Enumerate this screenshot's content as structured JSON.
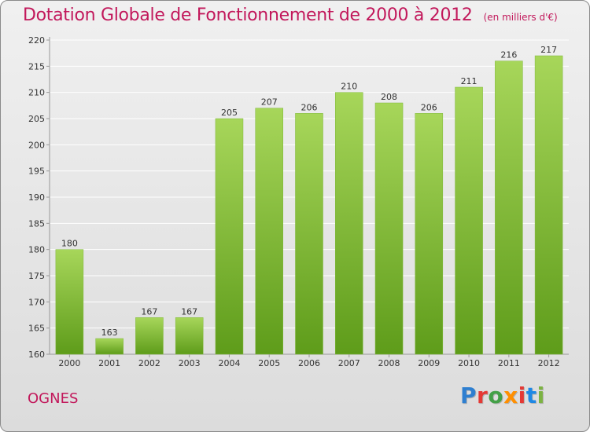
{
  "header": {
    "title": "Dotation Globale de Fonctionnement de 2000 à 2012",
    "unit": "(en milliers d'€)"
  },
  "commune": "OGNES",
  "logo": {
    "letters": [
      "P",
      "r",
      "o",
      "x",
      "i",
      "t",
      "i"
    ],
    "colors": [
      "#2e7fd0",
      "#e53935",
      "#43a047",
      "#ff8f00",
      "#e53935",
      "#1e88e5",
      "#7cb342"
    ]
  },
  "colors": {
    "bar_top": "#a7d65a",
    "bar_bottom": "#5e9c1a",
    "grid": "#ffffff",
    "axis": "#999999",
    "title": "#c2185b"
  },
  "chart_data": {
    "type": "bar",
    "title": "Dotation Globale de Fonctionnement de 2000 à 2012",
    "subtitle": "(en milliers d'€)",
    "xlabel": "",
    "ylabel": "",
    "categories": [
      "2000",
      "2001",
      "2002",
      "2003",
      "2004",
      "2005",
      "2006",
      "2007",
      "2008",
      "2009",
      "2010",
      "2011",
      "2012"
    ],
    "values": [
      180,
      163,
      167,
      167,
      205,
      207,
      206,
      210,
      208,
      206,
      211,
      216,
      217
    ],
    "ylim": [
      160,
      220
    ],
    "yticks": [
      160,
      165,
      170,
      175,
      180,
      185,
      190,
      195,
      200,
      205,
      210,
      215,
      220
    ],
    "grid": true,
    "legend": "none"
  }
}
